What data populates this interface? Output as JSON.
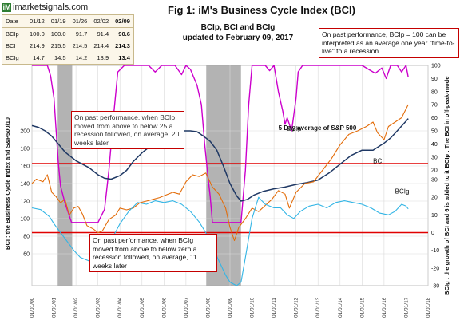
{
  "logo_text": "imarketsignals.com",
  "logo_mark": "iM",
  "title": "Fig 1:  iM's Business Cycle Index (BCI)",
  "subtitle_line1": "BCIp, BCI and BCIg",
  "subtitle_line2": "updated to February 09, 2017",
  "top_note": "On past performance, BCIp = 100 can be interpreted as an average one year \"time-to-live\" to a recession.",
  "note1": "On past performance,  when BCIp moved from above to below 25 a recession followed, on average, 20 weeks later",
  "note2": "On past performance,  when BCIg moved from above to below zero a recession followed, on average, 11 weeks later",
  "table": {
    "header": [
      "Date",
      "01/12",
      "01/19",
      "01/26",
      "02/02",
      "02/09"
    ],
    "rows": [
      {
        "label": "BCIp",
        "values": [
          "100.0",
          "100.0",
          "91.7",
          "91.4",
          "90.6"
        ]
      },
      {
        "label": "BCI",
        "values": [
          "214.9",
          "215.5",
          "214.5",
          "214.4",
          "214.3"
        ]
      },
      {
        "label": "BCIg",
        "values": [
          "14.7",
          "14.5",
          "14.2",
          "13.9",
          "13.4"
        ]
      }
    ]
  },
  "colors": {
    "bcip": "#cc00cc",
    "bci": "#1f3864",
    "bcig": "#33b5e5",
    "sp500": "#e36c09",
    "recession": "#a6a6a6",
    "threshold": "#e00000",
    "grid": "#d9d9d9"
  },
  "chart_data": {
    "type": "line",
    "x_tick_labels": [
      "01/01/00",
      "01/01/01",
      "01/01/02",
      "01/01/03",
      "01/01/04",
      "01/01/05",
      "01/01/06",
      "01/01/07",
      "01/01/08",
      "01/01/09",
      "01/01/10",
      "01/01/11",
      "01/01/12",
      "01/01/13",
      "01/01/14",
      "01/01/15",
      "01/01/16",
      "01/01/17",
      "01/01/18"
    ],
    "x_range": [
      2000.0,
      2018.0
    ],
    "left_axis": {
      "label": "BCI : the Business Cycle Index and S&P500/10",
      "range": [
        20,
        240
      ],
      "ticks": [
        60,
        80,
        100,
        120,
        140,
        160,
        180,
        200
      ]
    },
    "right_axis_upper": {
      "label": "BCIp : The BCI in off-peak-mode",
      "range": [
        -20,
        100
      ],
      "ticks": [
        0,
        10,
        20,
        30,
        40,
        50,
        60,
        70,
        80,
        90,
        100
      ]
    },
    "right_axis_lower": {
      "label": "BCIg : the growth of BCI and 6 is added to it",
      "range": [
        -30,
        30
      ],
      "ticks": [
        -30,
        -20,
        -10,
        0,
        10,
        20,
        30
      ]
    },
    "recessions": [
      [
        2001.17,
        2001.83
      ],
      [
        2007.92,
        2009.5
      ]
    ],
    "threshold_lines": [
      {
        "axis": "right_upper",
        "value": 25
      },
      {
        "axis": "right_lower",
        "value": 0
      }
    ],
    "annotations": [
      {
        "text": "BCIp",
        "x": 2011.6,
        "y_axis": "right_upper",
        "y": 50
      },
      {
        "text": "5 Day average of  S&P 500",
        "x": 2011.2,
        "y_axis": "left",
        "y": 201
      },
      {
        "text": "BCI",
        "x": 2015.5,
        "y_axis": "left",
        "y": 163
      },
      {
        "text": "BCIg",
        "x": 2016.5,
        "y_axis": "right_lower",
        "y": 22
      }
    ],
    "series": [
      {
        "name": "BCIp",
        "axis": "right_upper",
        "x": [
          2000.0,
          2000.4,
          2000.7,
          2000.85,
          2001.0,
          2001.1,
          2001.2,
          2001.3,
          2001.5,
          2001.8,
          2002.0,
          2002.5,
          2003.0,
          2003.3,
          2003.5,
          2003.7,
          2003.9,
          2004.2,
          2004.5,
          2004.8,
          2005.0,
          2005.3,
          2005.6,
          2005.9,
          2006.2,
          2006.5,
          2006.8,
          2007.0,
          2007.2,
          2007.5,
          2007.7,
          2007.85,
          2008.0,
          2008.1,
          2008.2,
          2008.35,
          2008.5,
          2008.7,
          2009.0,
          2009.3,
          2009.5,
          2009.7,
          2009.85,
          2010.0,
          2010.3,
          2010.6,
          2010.8,
          2011.0,
          2011.2,
          2011.4,
          2011.5,
          2011.6,
          2011.8,
          2012.0,
          2012.1,
          2012.3,
          2012.6,
          2013.0,
          2013.5,
          2014.0,
          2014.5,
          2015.0,
          2015.4,
          2015.6,
          2015.9,
          2016.1,
          2016.3,
          2016.6,
          2016.8,
          2017.0,
          2017.1
        ],
        "values": [
          100,
          100,
          100,
          92,
          75,
          50,
          25,
          8,
          -5,
          -20,
          -20,
          -20,
          -20,
          -10,
          20,
          60,
          95,
          100,
          100,
          100,
          100,
          100,
          95,
          100,
          100,
          100,
          93,
          100,
          97,
          85,
          70,
          40,
          15,
          0,
          -20,
          -20,
          -20,
          -20,
          -20,
          -20,
          -20,
          20,
          70,
          100,
          100,
          100,
          96,
          100,
          80,
          65,
          55,
          60,
          50,
          75,
          95,
          100,
          100,
          100,
          100,
          100,
          100,
          100,
          96,
          94,
          98,
          90,
          100,
          100,
          95,
          100,
          91
        ]
      },
      {
        "name": "BCI",
        "axis": "left",
        "x": [
          2000.0,
          2000.3,
          2000.6,
          2000.9,
          2001.2,
          2001.5,
          2001.8,
          2002.0,
          2002.3,
          2002.6,
          2003.0,
          2003.3,
          2003.6,
          2004.0,
          2004.3,
          2004.6,
          2005.0,
          2005.5,
          2006.0,
          2006.4,
          2006.8,
          2007.2,
          2007.5,
          2007.8,
          2008.1,
          2008.4,
          2008.7,
          2009.0,
          2009.3,
          2009.5,
          2009.8,
          2010.1,
          2010.5,
          2011.0,
          2011.5,
          2012.0,
          2012.5,
          2013.0,
          2013.5,
          2014.0,
          2014.5,
          2015.0,
          2015.5,
          2016.0,
          2016.3,
          2016.6,
          2017.0,
          2017.1
        ],
        "values": [
          206,
          204,
          200,
          194,
          185,
          176,
          170,
          166,
          162,
          158,
          150,
          146,
          145,
          149,
          155,
          165,
          175,
          185,
          192,
          198,
          200,
          200,
          199,
          194,
          188,
          178,
          160,
          140,
          126,
          120,
          122,
          127,
          131,
          134,
          136,
          139,
          141,
          144,
          152,
          162,
          172,
          178,
          178,
          186,
          192,
          200,
          211,
          214
        ]
      },
      {
        "name": "5 Day average of  S&P 500",
        "axis": "left",
        "x": [
          2000.0,
          2000.2,
          2000.5,
          2000.7,
          2000.9,
          2001.1,
          2001.3,
          2001.5,
          2001.7,
          2001.9,
          2002.1,
          2002.3,
          2002.5,
          2002.8,
          2003.0,
          2003.2,
          2003.5,
          2003.8,
          2004.0,
          2004.3,
          2004.6,
          2004.9,
          2005.2,
          2005.5,
          2005.8,
          2006.1,
          2006.4,
          2006.7,
          2007.0,
          2007.3,
          2007.6,
          2007.9,
          2008.2,
          2008.5,
          2008.8,
          2009.0,
          2009.2,
          2009.4,
          2009.7,
          2010.0,
          2010.3,
          2010.6,
          2010.9,
          2011.2,
          2011.5,
          2011.7,
          2012.0,
          2012.4,
          2012.8,
          2013.2,
          2013.6,
          2014.0,
          2014.4,
          2014.8,
          2015.2,
          2015.5,
          2015.7,
          2016.0,
          2016.2,
          2016.5,
          2016.8,
          2017.0,
          2017.1
        ],
        "values": [
          140,
          145,
          142,
          150,
          130,
          125,
          118,
          122,
          104,
          112,
          114,
          105,
          92,
          88,
          84,
          86,
          99,
          104,
          112,
          110,
          112,
          118,
          120,
          122,
          124,
          127,
          130,
          128,
          142,
          150,
          148,
          152,
          136,
          128,
          112,
          90,
          75,
          90,
          100,
          112,
          108,
          115,
          122,
          132,
          128,
          112,
          130,
          140,
          142,
          155,
          168,
          184,
          196,
          200,
          205,
          210,
          198,
          190,
          205,
          210,
          215,
          225,
          230
        ]
      },
      {
        "name": "BCIg",
        "axis": "right_lower",
        "x": [
          2000.0,
          2000.4,
          2000.8,
          2001.0,
          2001.3,
          2001.6,
          2001.9,
          2002.2,
          2002.6,
          2003.0,
          2003.4,
          2003.7,
          2004.0,
          2004.4,
          2004.8,
          2005.2,
          2005.6,
          2006.0,
          2006.4,
          2006.8,
          2007.2,
          2007.6,
          2007.9,
          2008.2,
          2008.5,
          2008.8,
          2009.0,
          2009.3,
          2009.5,
          2009.7,
          2010.0,
          2010.3,
          2010.6,
          2011.0,
          2011.3,
          2011.6,
          2011.9,
          2012.2,
          2012.6,
          2013.0,
          2013.4,
          2013.8,
          2014.2,
          2014.6,
          2015.0,
          2015.4,
          2015.8,
          2016.2,
          2016.5,
          2016.8,
          2017.0,
          2017.1
        ],
        "values": [
          14,
          13,
          9,
          5,
          0,
          -5,
          -10,
          -14,
          -16,
          -16,
          -10,
          -2,
          5,
          12,
          17,
          16,
          18,
          17,
          18,
          16,
          12,
          6,
          0,
          -8,
          -16,
          -24,
          -28,
          -30,
          -28,
          -14,
          8,
          20,
          16,
          14,
          14,
          10,
          8,
          12,
          15,
          16,
          14,
          17,
          18,
          17,
          16,
          14,
          11,
          10,
          12,
          16,
          15,
          13.4
        ]
      }
    ]
  }
}
